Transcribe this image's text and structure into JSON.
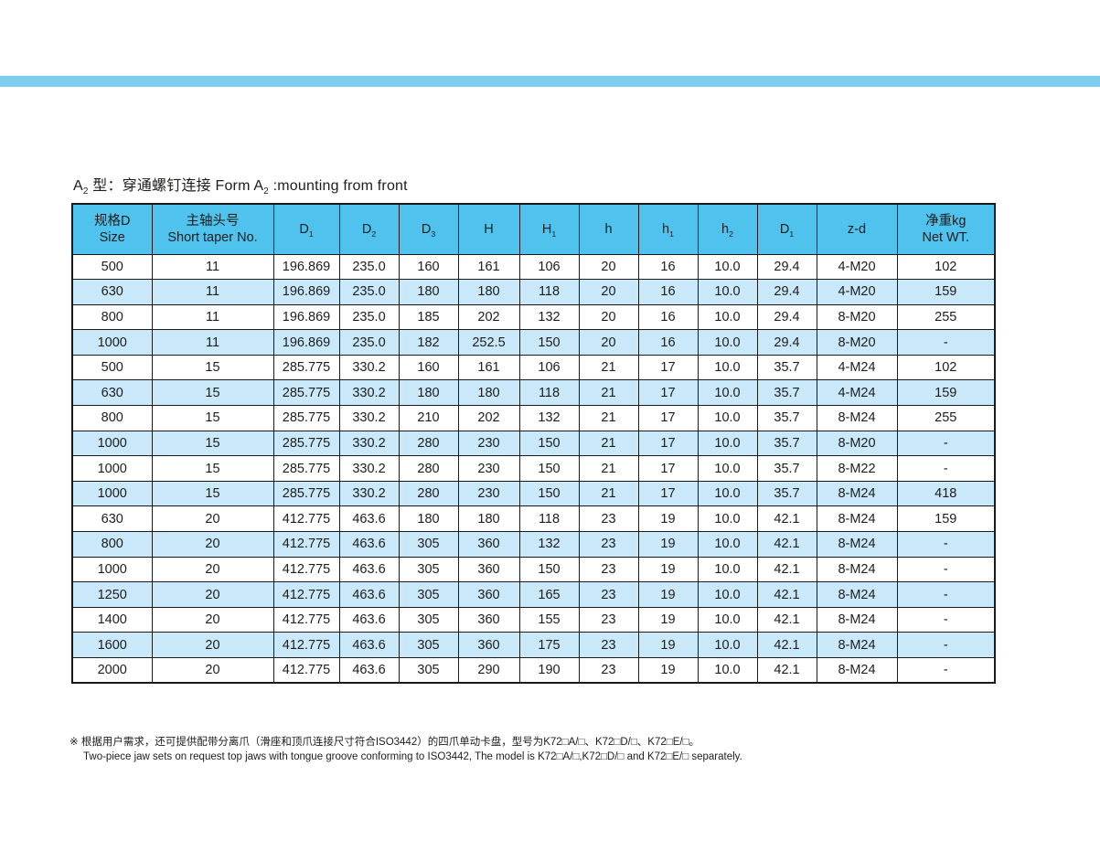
{
  "title": {
    "p1": "A",
    "s1": "2",
    "p2": " 型：穿通螺钉连接 Form A",
    "s2": "2",
    "p3": " :mounting from front"
  },
  "colors": {
    "top_bar": "#7dcdf0",
    "header_bg": "#4fc3ee",
    "row_alt_bg": "#c9e8f9",
    "border": "#1a1a1a",
    "text": "#1d1d1b"
  },
  "table": {
    "headers": [
      {
        "lines": [
          "规格D",
          "Size"
        ]
      },
      {
        "lines": [
          "主轴头号",
          "Short taper No."
        ]
      },
      {
        "base": "D",
        "sub": "1"
      },
      {
        "base": "D",
        "sub": "2"
      },
      {
        "base": "D",
        "sub": "3"
      },
      {
        "base": "H"
      },
      {
        "base": "H",
        "sub": "1"
      },
      {
        "base": "h"
      },
      {
        "base": "h",
        "sub": "1"
      },
      {
        "base": "h",
        "sub": "2"
      },
      {
        "base": "D",
        "sub": "1"
      },
      {
        "base": "z-d"
      },
      {
        "lines": [
          "净重kg",
          "Net WT."
        ]
      }
    ],
    "rows": [
      [
        "500",
        "11",
        "196.869",
        "235.0",
        "160",
        "161",
        "106",
        "20",
        "16",
        "10.0",
        "29.4",
        "4-M20",
        "102"
      ],
      [
        "630",
        "11",
        "196.869",
        "235.0",
        "180",
        "180",
        "118",
        "20",
        "16",
        "10.0",
        "29.4",
        "4-M20",
        "159"
      ],
      [
        "800",
        "11",
        "196.869",
        "235.0",
        "185",
        "202",
        "132",
        "20",
        "16",
        "10.0",
        "29.4",
        "8-M20",
        "255"
      ],
      [
        "1000",
        "11",
        "196.869",
        "235.0",
        "182",
        "252.5",
        "150",
        "20",
        "16",
        "10.0",
        "29.4",
        "8-M20",
        "-"
      ],
      [
        "500",
        "15",
        "285.775",
        "330.2",
        "160",
        "161",
        "106",
        "21",
        "17",
        "10.0",
        "35.7",
        "4-M24",
        "102"
      ],
      [
        "630",
        "15",
        "285.775",
        "330.2",
        "180",
        "180",
        "118",
        "21",
        "17",
        "10.0",
        "35.7",
        "4-M24",
        "159"
      ],
      [
        "800",
        "15",
        "285.775",
        "330.2",
        "210",
        "202",
        "132",
        "21",
        "17",
        "10.0",
        "35.7",
        "8-M24",
        "255"
      ],
      [
        "1000",
        "15",
        "285.775",
        "330.2",
        "280",
        "230",
        "150",
        "21",
        "17",
        "10.0",
        "35.7",
        "8-M20",
        "-"
      ],
      [
        "1000",
        "15",
        "285.775",
        "330.2",
        "280",
        "230",
        "150",
        "21",
        "17",
        "10.0",
        "35.7",
        "8-M22",
        "-"
      ],
      [
        "1000",
        "15",
        "285.775",
        "330.2",
        "280",
        "230",
        "150",
        "21",
        "17",
        "10.0",
        "35.7",
        "8-M24",
        "418"
      ],
      [
        "630",
        "20",
        "412.775",
        "463.6",
        "180",
        "180",
        "118",
        "23",
        "19",
        "10.0",
        "42.1",
        "8-M24",
        "159"
      ],
      [
        "800",
        "20",
        "412.775",
        "463.6",
        "305",
        "360",
        "132",
        "23",
        "19",
        "10.0",
        "42.1",
        "8-M24",
        "-"
      ],
      [
        "1000",
        "20",
        "412.775",
        "463.6",
        "305",
        "360",
        "150",
        "23",
        "19",
        "10.0",
        "42.1",
        "8-M24",
        "-"
      ],
      [
        "1250",
        "20",
        "412.775",
        "463.6",
        "305",
        "360",
        "165",
        "23",
        "19",
        "10.0",
        "42.1",
        "8-M24",
        "-"
      ],
      [
        "1400",
        "20",
        "412.775",
        "463.6",
        "305",
        "360",
        "155",
        "23",
        "19",
        "10.0",
        "42.1",
        "8-M24",
        "-"
      ],
      [
        "1600",
        "20",
        "412.775",
        "463.6",
        "305",
        "360",
        "175",
        "23",
        "19",
        "10.0",
        "42.1",
        "8-M24",
        "-"
      ],
      [
        "2000",
        "20",
        "412.775",
        "463.6",
        "305",
        "290",
        "190",
        "23",
        "19",
        "10.0",
        "42.1",
        "8-M24",
        "-"
      ]
    ]
  },
  "footnote": {
    "line1": "※ 根据用户需求，还可提供配带分离爪（滑座和顶爪连接尺寸符合ISO3442）的四爪单动卡盘，型号为K72□A/□、K72□D/□、K72□E/□。",
    "line2": "Two-piece jaw sets on request top jaws with tongue groove conforming to ISO3442, The model is K72□A/□,K72□D/□ and K72□E/□ separately."
  }
}
